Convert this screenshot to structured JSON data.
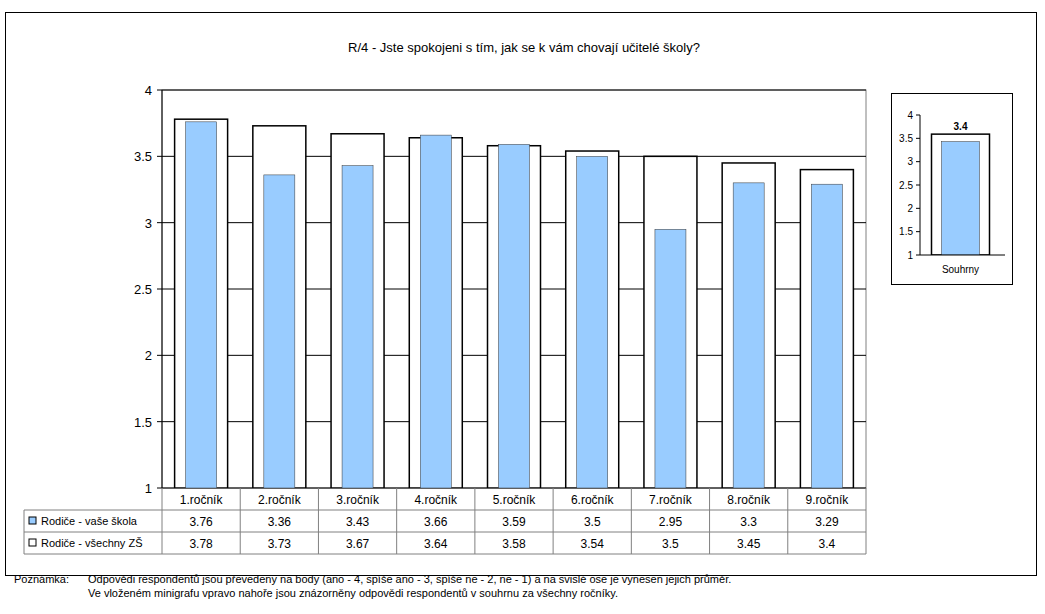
{
  "chart_data": [
    {
      "type": "bar",
      "title": "R/4 - Jste spokojeni s tím, jak se k vám chovají učitelé školy?",
      "categories": [
        "1.ročník",
        "2.ročník",
        "3.ročník",
        "4.ročník",
        "5.ročník",
        "6.ročník",
        "7.ročník",
        "8.ročník",
        "9.ročník"
      ],
      "series": [
        {
          "name": "Rodiče - vaše škola",
          "color": "#99ccff",
          "values": [
            3.76,
            3.36,
            3.43,
            3.66,
            3.59,
            3.5,
            2.95,
            3.3,
            3.29
          ]
        },
        {
          "name": "Rodiče - všechny ZŠ",
          "color": "#ffffff",
          "values": [
            3.78,
            3.73,
            3.67,
            3.64,
            3.58,
            3.54,
            3.5,
            3.45,
            3.4
          ]
        }
      ],
      "ylim": [
        1,
        4
      ],
      "yticks": [
        1,
        1.5,
        2,
        2.5,
        3,
        3.5,
        4
      ],
      "grid": true,
      "legend": "bottom",
      "annotations": [
        "Poznámka:",
        "Odpovědi respondentů jsou převedeny na body (ano - 4, spíše ano - 3, spíše ne - 2, ne - 1) a na svislé ose je vynesen jejich průměr.",
        "Ve vloženém minigrafu vpravo nahoře jsou znázorněny odpovědi respondentů v souhrnu za všechny ročníky."
      ]
    },
    {
      "type": "bar",
      "categories": [
        "Souhrny"
      ],
      "series": [
        {
          "color": "#99ccff",
          "values": [
            3.43
          ],
          "data_labels": true,
          "value_labels": [
            "3.4"
          ]
        },
        {
          "color": "#ffffff",
          "values": [
            3.59
          ]
        }
      ],
      "ylim": [
        1,
        4
      ],
      "yticks": [
        1,
        1.5,
        2,
        2.5,
        3,
        3.5,
        4
      ],
      "grid": false
    }
  ]
}
